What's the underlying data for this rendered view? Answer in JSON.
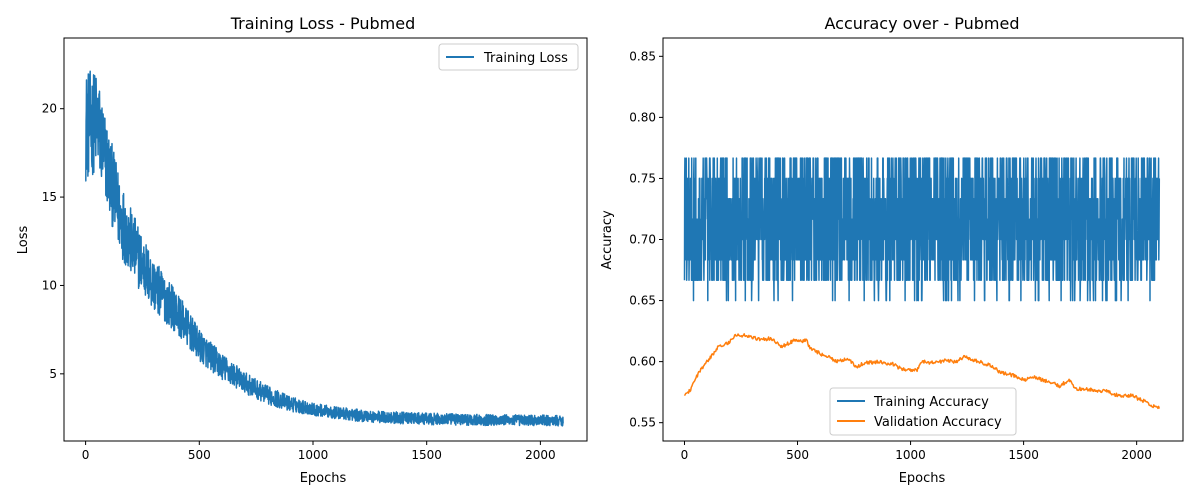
{
  "colors": {
    "series1": "#1f77b4",
    "series2": "#ff7f0e"
  },
  "chart_data": [
    {
      "type": "line",
      "title": "Training Loss - Pubmed",
      "xlabel": "Epochs",
      "ylabel": "Loss",
      "xlim": [
        -95,
        2205
      ],
      "ylim": [
        1.2,
        24.0
      ],
      "xticks": [
        0,
        500,
        1000,
        1500,
        2000
      ],
      "yticks": [
        5,
        10,
        15,
        20
      ],
      "grid": false,
      "legend_position": "top-right",
      "series": [
        {
          "name": "Training Loss",
          "color": "#1f77b4",
          "sampling": "noisy",
          "x_start": 0,
          "x_end": 2100,
          "anchors": [
            [
              0,
              19.0
            ],
            [
              50,
              19.3
            ],
            [
              100,
              16.5
            ],
            [
              150,
              14.0
            ],
            [
              200,
              12.4
            ],
            [
              300,
              10.0
            ],
            [
              400,
              8.5
            ],
            [
              500,
              6.6
            ],
            [
              600,
              5.4
            ],
            [
              700,
              4.5
            ],
            [
              800,
              3.8
            ],
            [
              900,
              3.3
            ],
            [
              1000,
              3.0
            ],
            [
              1100,
              2.8
            ],
            [
              1200,
              2.65
            ],
            [
              1300,
              2.55
            ],
            [
              1500,
              2.45
            ],
            [
              1700,
              2.4
            ],
            [
              1900,
              2.38
            ],
            [
              2100,
              2.35
            ]
          ],
          "noise": [
            [
              0,
              3.2
            ],
            [
              100,
              2.4
            ],
            [
              300,
              1.5
            ],
            [
              500,
              0.9
            ],
            [
              700,
              0.6
            ],
            [
              1000,
              0.35
            ],
            [
              2100,
              0.3
            ]
          ]
        }
      ]
    },
    {
      "type": "line",
      "title": "Accuracy over - Pubmed",
      "xlabel": "Epochs",
      "ylabel": "Accuracy",
      "xlim": [
        -95,
        2205
      ],
      "ylim": [
        0.535,
        0.865
      ],
      "xticks": [
        0,
        500,
        1000,
        1500,
        2000
      ],
      "yticks": [
        0.55,
        0.6,
        0.65,
        0.7,
        0.75,
        0.8,
        0.85
      ],
      "grid": false,
      "legend_position": "lower center",
      "series": [
        {
          "name": "Training Accuracy",
          "color": "#1f77b4",
          "sampling": "noisy",
          "x_start": 0,
          "x_end": 2100,
          "anchors": [
            [
              0,
              0.715
            ],
            [
              2100,
              0.715
            ]
          ],
          "noise": [
            [
              0,
              0.06
            ],
            [
              2100,
              0.06
            ]
          ],
          "ymin_clip": 0.55,
          "ymax_clip": 0.85,
          "quantize": 60
        },
        {
          "name": "Validation Accuracy",
          "color": "#ff7f0e",
          "sampling": "smooth",
          "points": [
            [
              0,
              0.572
            ],
            [
              30,
              0.578
            ],
            [
              60,
              0.59
            ],
            [
              100,
              0.6
            ],
            [
              150,
              0.612
            ],
            [
              200,
              0.616
            ],
            [
              230,
              0.622
            ],
            [
              280,
              0.621
            ],
            [
              330,
              0.618
            ],
            [
              380,
              0.619
            ],
            [
              430,
              0.612
            ],
            [
              480,
              0.617
            ],
            [
              540,
              0.617
            ],
            [
              560,
              0.61
            ],
            [
              620,
              0.605
            ],
            [
              680,
              0.6
            ],
            [
              720,
              0.603
            ],
            [
              760,
              0.596
            ],
            [
              800,
              0.599
            ],
            [
              860,
              0.6
            ],
            [
              920,
              0.598
            ],
            [
              960,
              0.594
            ],
            [
              1030,
              0.593
            ],
            [
              1050,
              0.6
            ],
            [
              1100,
              0.599
            ],
            [
              1160,
              0.601
            ],
            [
              1200,
              0.6
            ],
            [
              1240,
              0.604
            ],
            [
              1300,
              0.6
            ],
            [
              1350,
              0.597
            ],
            [
              1400,
              0.591
            ],
            [
              1450,
              0.589
            ],
            [
              1500,
              0.585
            ],
            [
              1550,
              0.587
            ],
            [
              1600,
              0.584
            ],
            [
              1660,
              0.58
            ],
            [
              1700,
              0.585
            ],
            [
              1730,
              0.578
            ],
            [
              1800,
              0.577
            ],
            [
              1860,
              0.576
            ],
            [
              1920,
              0.572
            ],
            [
              1980,
              0.572
            ],
            [
              2040,
              0.567
            ],
            [
              2080,
              0.563
            ],
            [
              2100,
              0.563
            ]
          ]
        }
      ]
    }
  ]
}
